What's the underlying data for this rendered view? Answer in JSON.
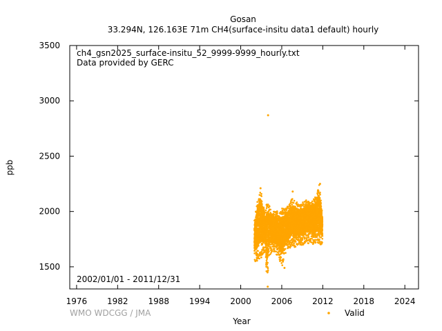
{
  "chart_data": {
    "type": "scatter",
    "title": "Gosan",
    "subtitle": "33.294N, 126.163E 71m    CH4(surface-insitu data1 default) hourly",
    "xlabel": "Year",
    "ylabel": "ppb",
    "xlim": [
      1975,
      2026
    ],
    "ylim": [
      1300,
      3500
    ],
    "xticks": [
      1976,
      1982,
      1988,
      1994,
      2000,
      2006,
      2012,
      2018,
      2024
    ],
    "yticks": [
      1500,
      2000,
      2500,
      3000,
      3500
    ],
    "annotations": [
      "ch4_gsn2025_surface-insitu_52_9999-9999_hourly.txt",
      "Data provided by GERC"
    ],
    "period": "2002/01/01 - 2011/12/31",
    "credit": "WMO WDCGG / JMA",
    "legend": {
      "label": "Valid",
      "position": "bottom-right"
    },
    "grid": false,
    "colors": {
      "valid": "#ffa500",
      "axis": "#000000",
      "credit": "#a0a0a0"
    },
    "series": [
      {
        "name": "Valid",
        "envelope": [
          {
            "x": 2002.0,
            "low": 1560,
            "high": 1920
          },
          {
            "x": 2002.3,
            "low": 1530,
            "high": 2050
          },
          {
            "x": 2002.7,
            "low": 1560,
            "high": 2200
          },
          {
            "x": 2003.0,
            "low": 1580,
            "high": 2210
          },
          {
            "x": 2003.3,
            "low": 1620,
            "high": 2050
          },
          {
            "x": 2003.6,
            "low": 1640,
            "high": 2000
          },
          {
            "x": 2003.8,
            "low": 1340,
            "high": 2080
          },
          {
            "x": 2004.2,
            "low": 1600,
            "high": 2060
          },
          {
            "x": 2004.6,
            "low": 1640,
            "high": 1990
          },
          {
            "x": 2005.0,
            "low": 1620,
            "high": 2010
          },
          {
            "x": 2005.5,
            "low": 1600,
            "high": 2000
          },
          {
            "x": 2006.0,
            "low": 1480,
            "high": 2030
          },
          {
            "x": 2006.5,
            "low": 1620,
            "high": 2020
          },
          {
            "x": 2007.0,
            "low": 1650,
            "high": 2060
          },
          {
            "x": 2007.5,
            "low": 1690,
            "high": 2120
          },
          {
            "x": 2008.0,
            "low": 1670,
            "high": 2100
          },
          {
            "x": 2008.5,
            "low": 1700,
            "high": 2060
          },
          {
            "x": 2009.0,
            "low": 1690,
            "high": 2080
          },
          {
            "x": 2009.5,
            "low": 1720,
            "high": 2100
          },
          {
            "x": 2010.0,
            "low": 1710,
            "high": 2110
          },
          {
            "x": 2010.5,
            "low": 1700,
            "high": 2120
          },
          {
            "x": 2011.0,
            "low": 1720,
            "high": 2140
          },
          {
            "x": 2011.5,
            "low": 1690,
            "high": 2250
          },
          {
            "x": 2011.95,
            "low": 1700,
            "high": 1980
          }
        ],
        "outliers": [
          {
            "x": 2004.0,
            "y": 2870
          },
          {
            "x": 2003.95,
            "y": 1320
          },
          {
            "x": 2002.9,
            "y": 2210
          },
          {
            "x": 2007.6,
            "y": 2180
          },
          {
            "x": 2011.6,
            "y": 2250
          },
          {
            "x": 2006.4,
            "y": 1490
          }
        ]
      }
    ]
  }
}
